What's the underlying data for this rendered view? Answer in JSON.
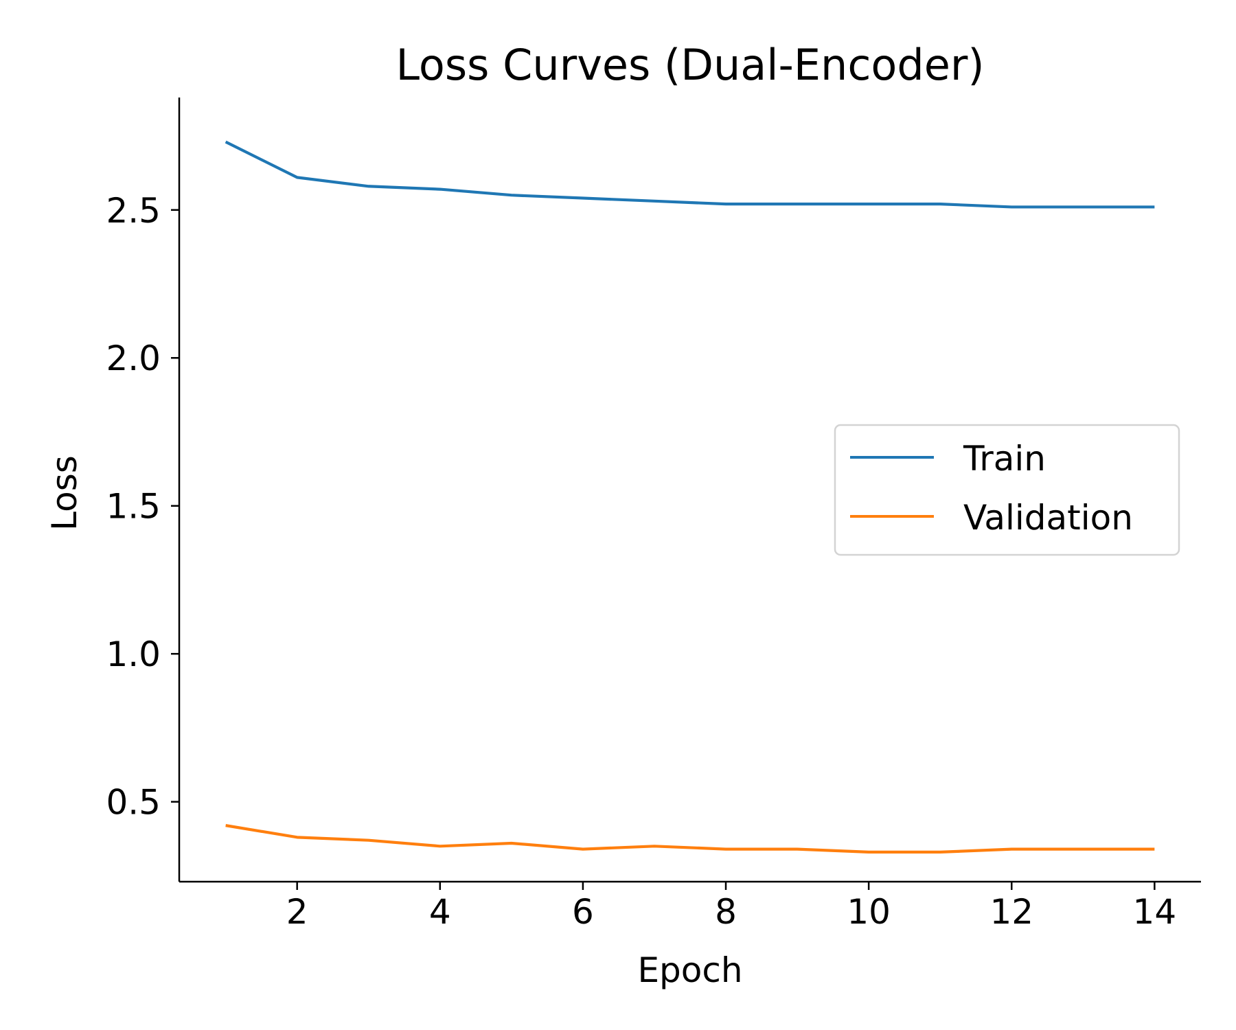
{
  "chart_data": {
    "type": "line",
    "title": "Loss Curves (Dual-Encoder)",
    "xlabel": "Epoch",
    "ylabel": "Loss",
    "x": [
      1,
      2,
      3,
      4,
      5,
      6,
      7,
      8,
      9,
      10,
      11,
      12,
      13,
      14
    ],
    "xlim": [
      0.35,
      14.65
    ],
    "ylim": [
      0.23,
      2.88
    ],
    "xticks": [
      2,
      4,
      6,
      8,
      10,
      12,
      14
    ],
    "yticks": [
      0.5,
      1.0,
      1.5,
      2.0,
      2.5
    ],
    "xtick_labels": [
      "2",
      "4",
      "6",
      "8",
      "10",
      "12",
      "14"
    ],
    "ytick_labels": [
      "0.5",
      "1.0",
      "1.5",
      "2.0",
      "2.5"
    ],
    "grid": false,
    "legend_position": "center-right",
    "series": [
      {
        "name": "Train",
        "color": "#1f77b4",
        "values": [
          2.73,
          2.61,
          2.58,
          2.57,
          2.55,
          2.54,
          2.53,
          2.52,
          2.52,
          2.52,
          2.52,
          2.51,
          2.51,
          2.51
        ]
      },
      {
        "name": "Validation",
        "color": "#ff7f0e",
        "values": [
          0.42,
          0.38,
          0.37,
          0.35,
          0.36,
          0.34,
          0.35,
          0.34,
          0.34,
          0.33,
          0.33,
          0.34,
          0.34,
          0.34
        ]
      }
    ]
  }
}
